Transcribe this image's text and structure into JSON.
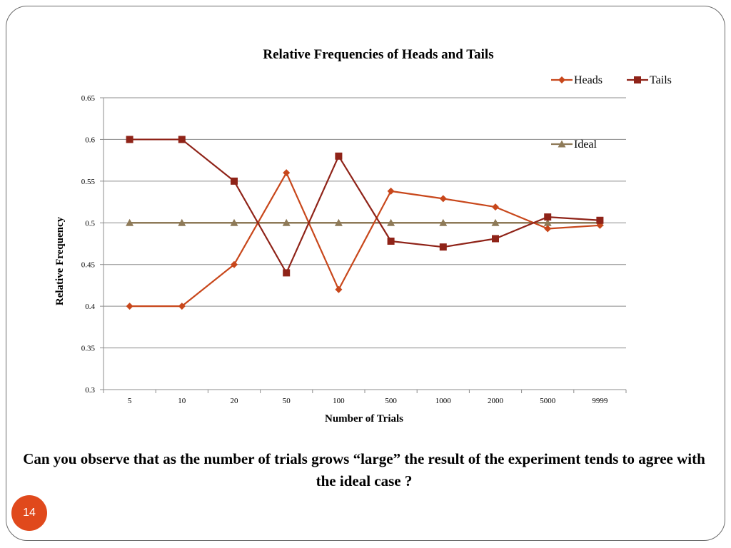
{
  "slide": {
    "caption": "Can you observe that as the number of trials grows “large” the result of the experiment tends to agree with the ideal case ?",
    "page_number": "14"
  },
  "chart_data": {
    "type": "line",
    "title": "Relative Frequencies of Heads and Tails",
    "xlabel": "Number of Trials",
    "ylabel": "Relative Frequency",
    "categories": [
      "5",
      "10",
      "20",
      "50",
      "100",
      "500",
      "1000",
      "2000",
      "5000",
      "9999"
    ],
    "ylim": [
      0.3,
      0.65
    ],
    "yticks": [
      "0.3",
      "0.35",
      "0.4",
      "0.45",
      "0.5",
      "0.55",
      "0.6",
      "0.65"
    ],
    "grid": true,
    "legend_position": "top-right",
    "series": [
      {
        "name": "Heads",
        "marker": "diamond",
        "color": "#c8471b",
        "values": [
          0.4,
          0.4,
          0.45,
          0.56,
          0.42,
          0.538,
          0.529,
          0.519,
          0.493,
          0.497
        ]
      },
      {
        "name": "Tails",
        "marker": "square",
        "color": "#8f2318",
        "values": [
          0.6,
          0.6,
          0.55,
          0.44,
          0.58,
          0.478,
          0.471,
          0.481,
          0.507,
          0.503
        ]
      },
      {
        "name": "Ideal",
        "marker": "triangle",
        "color": "#8e7a58",
        "values": [
          0.5,
          0.5,
          0.5,
          0.5,
          0.5,
          0.5,
          0.5,
          0.5,
          0.5,
          0.5
        ]
      }
    ]
  }
}
